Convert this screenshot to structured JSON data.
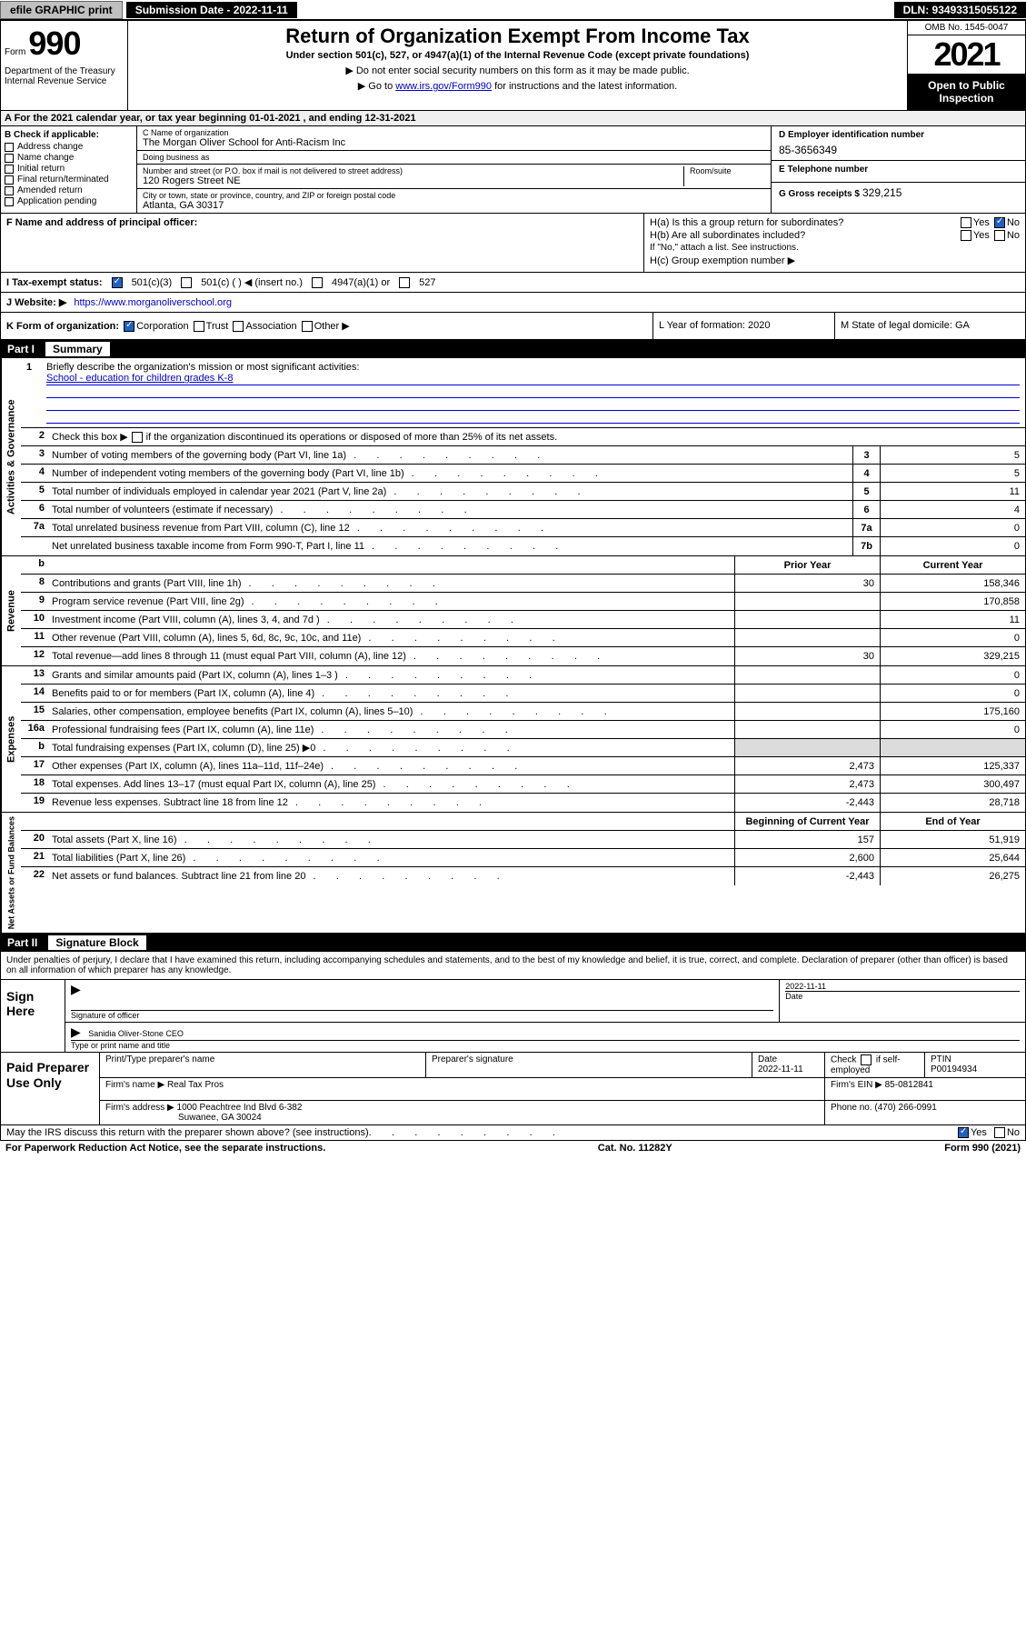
{
  "topbar": {
    "efile": "efile GRAPHIC print",
    "sub_date_label": "Submission Date - 2022-11-11",
    "dln": "DLN: 93493315055122"
  },
  "header": {
    "form_word": "Form",
    "form_number": "990",
    "dept": "Department of the Treasury Internal Revenue Service",
    "title": "Return of Organization Exempt From Income Tax",
    "subtitle": "Under section 501(c), 527, or 4947(a)(1) of the Internal Revenue Code (except private foundations)",
    "note1": "▶ Do not enter social security numbers on this form as it may be made public.",
    "note2_pre": "▶ Go to ",
    "note2_link": "www.irs.gov/Form990",
    "note2_post": " for instructions and the latest information.",
    "omb": "OMB No. 1545-0047",
    "year": "2021",
    "open": "Open to Public Inspection"
  },
  "row_a": "A  For the 2021 calendar year, or tax year beginning 01-01-2021    , and ending 12-31-2021",
  "section_b": {
    "title": "B Check if applicable:",
    "items": [
      "Address change",
      "Name change",
      "Initial return",
      "Final return/terminated",
      "Amended return",
      "Application pending"
    ]
  },
  "section_c": {
    "name_label": "C Name of organization",
    "org_name": "The Morgan Oliver School for Anti-Racism Inc",
    "dba_label": "Doing business as",
    "dba": "",
    "addr_label": "Number and street (or P.O. box if mail is not delivered to street address)",
    "room_label": "Room/suite",
    "addr": "120 Rogers Street NE",
    "city_label": "City or town, state or province, country, and ZIP or foreign postal code",
    "city": "Atlanta, GA  30317"
  },
  "section_d": {
    "label": "D Employer identification number",
    "val": "85-3656349"
  },
  "section_e": {
    "label": "E Telephone number",
    "val": ""
  },
  "section_g": {
    "label": "G Gross receipts $",
    "val": "329,215"
  },
  "section_f": {
    "label": "F Name and address of principal officer:",
    "val": ""
  },
  "section_h": {
    "ha": "H(a)  Is this a group return for subordinates?",
    "hb": "H(b)  Are all subordinates included?",
    "hb_note": "If \"No,\" attach a list. See instructions.",
    "hc": "H(c)  Group exemption number ▶"
  },
  "row_i": {
    "label": "I     Tax-exempt status:",
    "opt1": "501(c)(3)",
    "opt2": "501(c) (  ) ◀ (insert no.)",
    "opt3": "4947(a)(1) or",
    "opt4": "527"
  },
  "row_j": {
    "label": "J    Website: ▶",
    "val": "https://www.morganoliverschool.org"
  },
  "row_k": {
    "left_label": "K Form of organization:",
    "corp": "Corporation",
    "trust": "Trust",
    "assoc": "Association",
    "other": "Other ▶",
    "mid": "L Year of formation: 2020",
    "right": "M State of legal domicile: GA"
  },
  "part1": {
    "label": "Part I",
    "title": "Summary"
  },
  "summary": {
    "line1_label": "Briefly describe the organization's mission or most significant activities:",
    "line1_val": "School - education for children grades K-8",
    "line2": "Check this box ▶     if the organization discontinued its operations or disposed of more than 25% of its net assets.",
    "rows_gov": [
      {
        "n": "3",
        "d": "Number of voting members of the governing body (Part VI, line 1a)",
        "box": "3",
        "v": "5"
      },
      {
        "n": "4",
        "d": "Number of independent voting members of the governing body (Part VI, line 1b)",
        "box": "4",
        "v": "5"
      },
      {
        "n": "5",
        "d": "Total number of individuals employed in calendar year 2021 (Part V, line 2a)",
        "box": "5",
        "v": "11"
      },
      {
        "n": "6",
        "d": "Total number of volunteers (estimate if necessary)",
        "box": "6",
        "v": "4"
      },
      {
        "n": "7a",
        "d": "Total unrelated business revenue from Part VIII, column (C), line 12",
        "box": "7a",
        "v": "0"
      },
      {
        "n": "",
        "d": "Net unrelated business taxable income from Form 990-T, Part I, line 11",
        "box": "7b",
        "v": "0"
      }
    ],
    "col_headers": {
      "n": "b",
      "prior": "Prior Year",
      "current": "Current Year"
    },
    "rows_rev": [
      {
        "n": "8",
        "d": "Contributions and grants (Part VIII, line 1h)",
        "py": "30",
        "cy": "158,346"
      },
      {
        "n": "9",
        "d": "Program service revenue (Part VIII, line 2g)",
        "py": "",
        "cy": "170,858"
      },
      {
        "n": "10",
        "d": "Investment income (Part VIII, column (A), lines 3, 4, and 7d )",
        "py": "",
        "cy": "11"
      },
      {
        "n": "11",
        "d": "Other revenue (Part VIII, column (A), lines 5, 6d, 8c, 9c, 10c, and 11e)",
        "py": "",
        "cy": "0"
      },
      {
        "n": "12",
        "d": "Total revenue—add lines 8 through 11 (must equal Part VIII, column (A), line 12)",
        "py": "30",
        "cy": "329,215"
      }
    ],
    "rows_exp": [
      {
        "n": "13",
        "d": "Grants and similar amounts paid (Part IX, column (A), lines 1–3 )",
        "py": "",
        "cy": "0"
      },
      {
        "n": "14",
        "d": "Benefits paid to or for members (Part IX, column (A), line 4)",
        "py": "",
        "cy": "0"
      },
      {
        "n": "15",
        "d": "Salaries, other compensation, employee benefits (Part IX, column (A), lines 5–10)",
        "py": "",
        "cy": "175,160"
      },
      {
        "n": "16a",
        "d": "Professional fundraising fees (Part IX, column (A), line 11e)",
        "py": "",
        "cy": "0"
      },
      {
        "n": "b",
        "d": "Total fundraising expenses (Part IX, column (D), line 25) ▶0",
        "py": "shade",
        "cy": "shade"
      },
      {
        "n": "17",
        "d": "Other expenses (Part IX, column (A), lines 11a–11d, 11f–24e)",
        "py": "2,473",
        "cy": "125,337"
      },
      {
        "n": "18",
        "d": "Total expenses. Add lines 13–17 (must equal Part IX, column (A), line 25)",
        "py": "2,473",
        "cy": "300,497"
      },
      {
        "n": "19",
        "d": "Revenue less expenses. Subtract line 18 from line 12",
        "py": "-2,443",
        "cy": "28,718"
      }
    ],
    "net_header": {
      "prior": "Beginning of Current Year",
      "current": "End of Year"
    },
    "rows_net": [
      {
        "n": "20",
        "d": "Total assets (Part X, line 16)",
        "py": "157",
        "cy": "51,919"
      },
      {
        "n": "21",
        "d": "Total liabilities (Part X, line 26)",
        "py": "2,600",
        "cy": "25,644"
      },
      {
        "n": "22",
        "d": "Net assets or fund balances. Subtract line 21 from line 20",
        "py": "-2,443",
        "cy": "26,275"
      }
    ]
  },
  "side_labels": {
    "gov": "Activities & Governance",
    "rev": "Revenue",
    "exp": "Expenses",
    "net": "Net Assets or Fund Balances"
  },
  "part2": {
    "label": "Part II",
    "title": "Signature Block",
    "penalty": "Under penalties of perjury, I declare that I have examined this return, including accompanying schedules and statements, and to the best of my knowledge and belief, it is true, correct, and complete. Declaration of preparer (other than officer) is based on all information of which preparer has any knowledge.",
    "sign_here": "Sign Here",
    "sig_officer_label": "Signature of officer",
    "sig_date": "2022-11-11",
    "date_label": "Date",
    "officer_name": "Sanidia Oliver-Stone CEO",
    "officer_title_label": "Type or print name and title",
    "paid_label": "Paid Preparer Use Only",
    "prep_name_label": "Print/Type preparer's name",
    "prep_sig_label": "Preparer's signature",
    "prep_date_label": "Date",
    "prep_date": "2022-11-11",
    "prep_check_label": "Check     if self-employed",
    "ptin_label": "PTIN",
    "ptin": "P00194934",
    "firm_name_label": "Firm's name    ▶",
    "firm_name": "Real Tax Pros",
    "firm_ein_label": "Firm's EIN ▶",
    "firm_ein": "85-0812841",
    "firm_addr_label": "Firm's address ▶",
    "firm_addr1": "1000 Peachtree Ind Blvd 6-382",
    "firm_addr2": "Suwanee, GA  30024",
    "phone_label": "Phone no.",
    "phone": "(470) 266-0991"
  },
  "footer": {
    "discuss": "May the IRS discuss this return with the preparer shown above? (see instructions)",
    "paperwork": "For Paperwork Reduction Act Notice, see the separate instructions.",
    "cat": "Cat. No. 11282Y",
    "form": "Form 990 (2021)"
  },
  "yes": "Yes",
  "no": "No"
}
